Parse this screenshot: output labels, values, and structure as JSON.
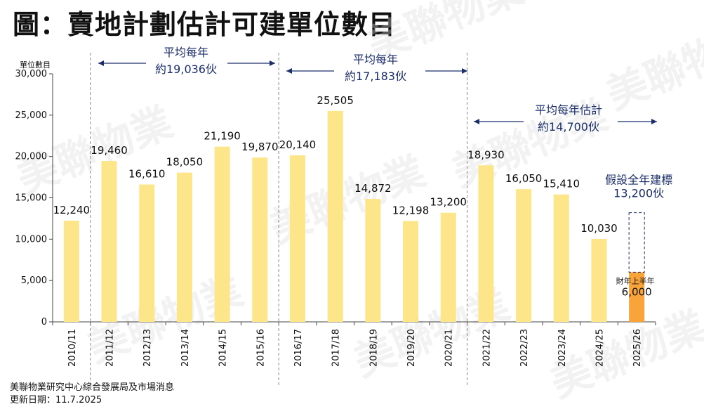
{
  "title": "圖：賣地計劃估計可建單位數目",
  "source": "美聯物業研究中心綜合發展局及市場消息",
  "update_date": "更新日期：11.7.2025",
  "watermark": "美聯物業",
  "colors": {
    "bar": "#fde68a",
    "highlight": "#f9a43a",
    "annotation": "#1b2e6b"
  },
  "chart_data": {
    "type": "bar",
    "ylabel": "單位數目",
    "ylim": [
      0,
      30000
    ],
    "yticks": [
      "0",
      "5,000",
      "10,000",
      "15,000",
      "20,000",
      "25,000",
      "30,000"
    ],
    "categories": [
      "2010/11",
      "2011/12",
      "2012/13",
      "2013/14",
      "2014/15",
      "2015/16",
      "2016/17",
      "2017/18",
      "2018/19",
      "2019/20",
      "2020/21",
      "2021/22",
      "2022/23",
      "2023/24",
      "2024/25",
      "2025/26"
    ],
    "values": [
      12240,
      19460,
      16610,
      18050,
      21190,
      19870,
      20140,
      25505,
      14872,
      12198,
      13200,
      18930,
      16050,
      15410,
      10030,
      6000
    ],
    "value_labels": [
      "12,240",
      "19,460",
      "16,610",
      "18,050",
      "21,190",
      "19,870",
      "20,140",
      "25,505",
      "14,872",
      "12,198",
      "13,200",
      "18,930",
      "16,050",
      "15,410",
      "10,030",
      "6,000"
    ],
    "periods": [
      {
        "line1": "平均每年",
        "line2": "約19,036伙",
        "from": 1,
        "to": 5
      },
      {
        "line1": "平均每年",
        "line2": "約17,183伙",
        "from": 6,
        "to": 10
      },
      {
        "line1": "平均每年估計",
        "line2": "約14,700伙",
        "from": 11,
        "to": 15
      }
    ],
    "target": {
      "value": 13200,
      "line1": "假設全年建標",
      "line2": "13,200伙"
    },
    "first_half_label": "財年上半年"
  }
}
